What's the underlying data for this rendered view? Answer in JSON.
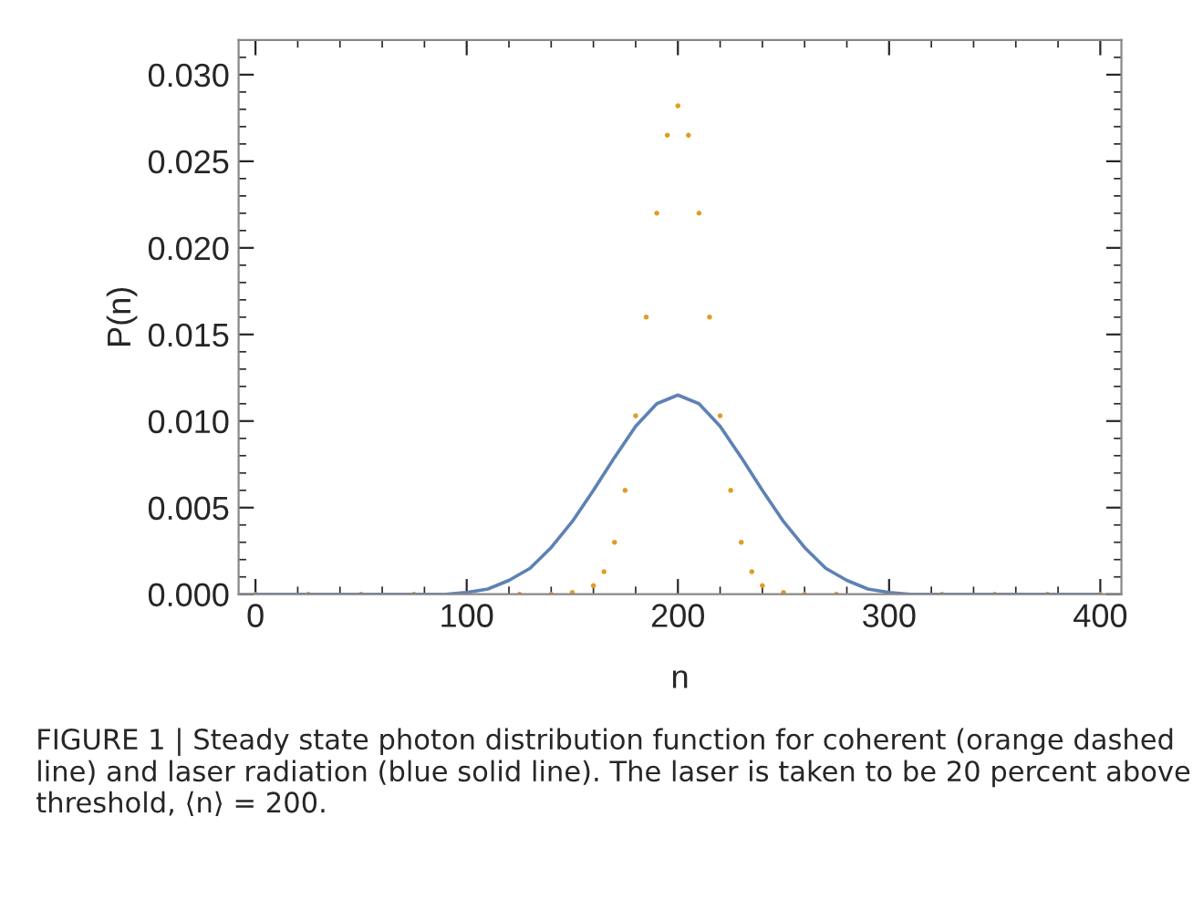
{
  "chart_data": {
    "type": "line",
    "xlabel": "n",
    "ylabel": "P(n)",
    "xlim": [
      -8,
      410
    ],
    "ylim": [
      0,
      0.032
    ],
    "xticks": [
      0,
      100,
      200,
      300,
      400
    ],
    "yticks": [
      {
        "value": 0,
        "label": "0.000"
      },
      {
        "value": 0.005,
        "label": "0.005"
      },
      {
        "value": 0.01,
        "label": "0.010"
      },
      {
        "value": 0.015,
        "label": "0.015"
      },
      {
        "value": 0.02,
        "label": "0.020"
      },
      {
        "value": 0.025,
        "label": "0.025"
      },
      {
        "value": 0.03,
        "label": "0.030"
      }
    ],
    "grid": false,
    "legend": false,
    "series": [
      {
        "color": "#5e81b5",
        "line_style": "solid",
        "marker": "none",
        "x": [
          0,
          50,
          90,
          100,
          110,
          120,
          130,
          140,
          150,
          160,
          170,
          180,
          190,
          200,
          210,
          220,
          230,
          240,
          250,
          260,
          270,
          280,
          290,
          300,
          310,
          350,
          400
        ],
        "values": [
          0,
          0,
          0,
          0.0001,
          0.0003,
          0.0008,
          0.0015,
          0.0027,
          0.0042,
          0.006,
          0.0079,
          0.0097,
          0.011,
          0.0115,
          0.011,
          0.0097,
          0.0079,
          0.006,
          0.0042,
          0.0027,
          0.0015,
          0.0008,
          0.0003,
          0.0001,
          0,
          0,
          0
        ]
      },
      {
        "type": "scatter",
        "color": "#e19c24",
        "marker": "circle",
        "x": [
          0,
          25,
          50,
          75,
          125,
          140,
          150,
          160,
          165,
          170,
          175,
          180,
          185,
          190,
          195,
          200,
          205,
          210,
          215,
          220,
          225,
          230,
          235,
          240,
          250,
          260,
          275,
          325,
          350,
          375,
          400
        ],
        "values": [
          0,
          0,
          0,
          0,
          0,
          0,
          0.0001,
          0.0005,
          0.0013,
          0.003,
          0.006,
          0.0103,
          0.016,
          0.022,
          0.0265,
          0.0282,
          0.0265,
          0.022,
          0.016,
          0.0103,
          0.006,
          0.003,
          0.0013,
          0.0005,
          0.0001,
          0,
          0,
          0,
          0,
          0,
          0
        ]
      }
    ],
    "annotations": [
      "FIGURE 1 | Steady state photon distribution function for coherent (orange dashed line) and laser radiation (blue solid line). The laser is taken to be 20 percent above threshold, ⟨n⟩ = 200."
    ]
  }
}
